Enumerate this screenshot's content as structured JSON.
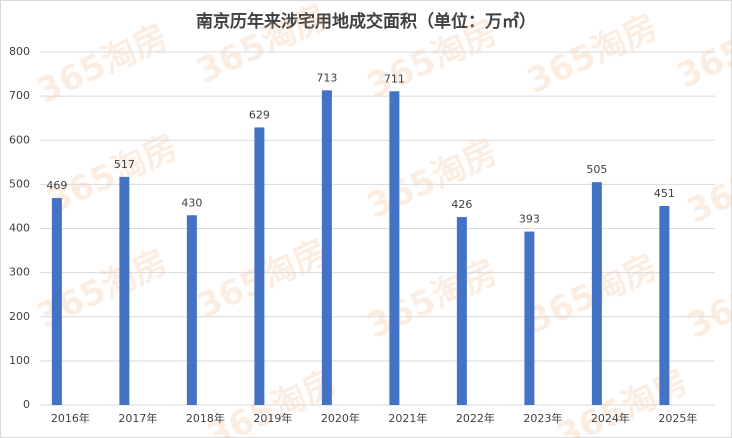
{
  "chart_data": {
    "type": "bar",
    "title": "南京历年来涉宅用地成交面积（单位：万㎡）",
    "categories": [
      "2016年",
      "2017年",
      "2018年",
      "2019年",
      "2020年",
      "2021年",
      "2022年",
      "2023年",
      "2024年",
      "2025年"
    ],
    "values": [
      469,
      517,
      430,
      629,
      713,
      711,
      426,
      393,
      505,
      451
    ],
    "color": "#4472c4",
    "ylim": [
      0,
      800
    ],
    "yticks": [
      0,
      100,
      200,
      300,
      400,
      500,
      600,
      700,
      800
    ],
    "grid": true,
    "watermark": "365淘房"
  }
}
